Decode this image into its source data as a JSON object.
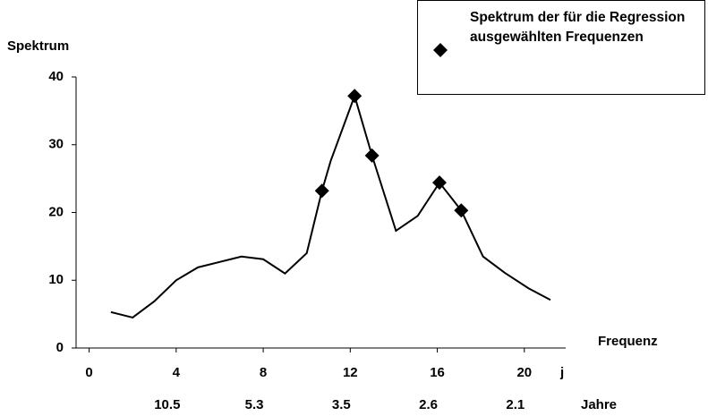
{
  "chart_data": {
    "type": "line",
    "y_label": "Spektrum",
    "x_label": "Frequenz",
    "x_unit_label": "j",
    "x2_unit_label": "Jahre",
    "xlim": [
      -0.6,
      21.9
    ],
    "ylim": [
      0,
      40
    ],
    "xticks": [
      0,
      4,
      8,
      12,
      16,
      20
    ],
    "x2ticks": [
      {
        "value": 4,
        "label": "10.5"
      },
      {
        "value": 8,
        "label": "5.3"
      },
      {
        "value": 12,
        "label": "3.5"
      },
      {
        "value": 16,
        "label": "2.6"
      },
      {
        "value": 20,
        "label": "2.1"
      }
    ],
    "yticks": [
      0,
      10,
      20,
      30,
      40
    ],
    "legend": "top-right",
    "series": [
      {
        "style": "line",
        "color": "#000000",
        "x": [
          1,
          2,
          3,
          4,
          5,
          6,
          7,
          8,
          9,
          10,
          10.7,
          11.1,
          12.2,
          13.0,
          14.1,
          15.1,
          16.1,
          17.1,
          18.1,
          19.1,
          20.2,
          21.2
        ],
        "values": [
          5.3,
          4.5,
          6.9,
          10.0,
          11.9,
          12.7,
          13.5,
          13.1,
          11.0,
          14.0,
          23.2,
          27.6,
          37.2,
          28.4,
          17.3,
          19.5,
          24.4,
          20.3,
          13.5,
          11.1,
          8.8,
          7.1
        ]
      },
      {
        "style": "markers",
        "color": "#000000",
        "name": "Spektrum der für die Regression ausgewählten Frequenzen",
        "x": [
          10.7,
          12.2,
          13.0,
          16.1,
          17.1
        ],
        "values": [
          23.2,
          37.2,
          28.4,
          24.4,
          20.3
        ]
      }
    ]
  }
}
